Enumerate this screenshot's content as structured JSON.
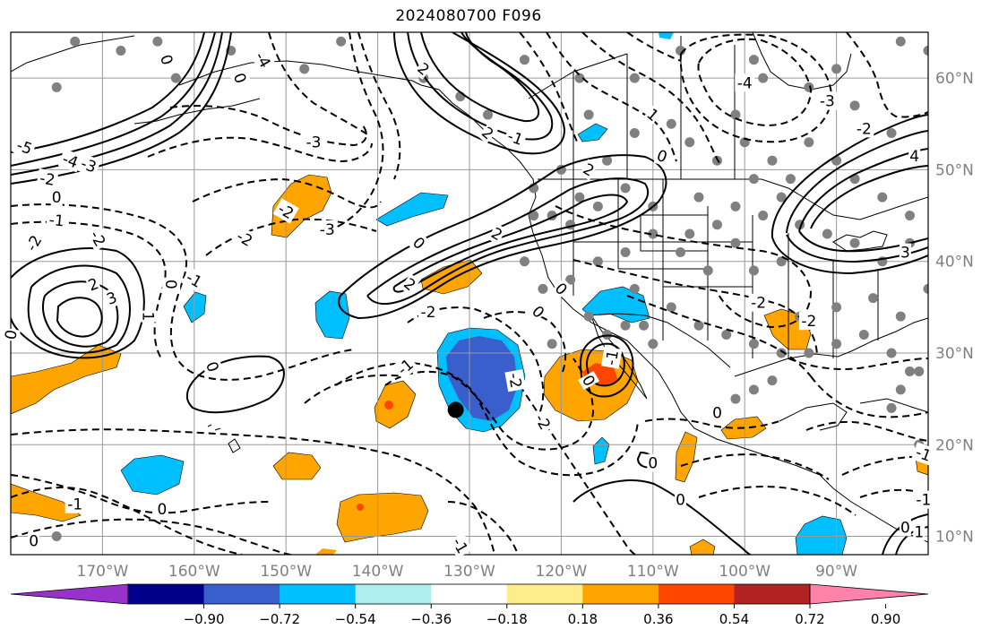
{
  "title": "2024080700 F096",
  "map": {
    "projection": "lat-lon",
    "extent": {
      "lon_min": -180,
      "lon_max": -80,
      "lat_min": 8,
      "lat_max": 65
    },
    "grid": true,
    "lon_ticks": [
      {
        "value": -170,
        "label": "170°W"
      },
      {
        "value": -160,
        "label": "160°W"
      },
      {
        "value": -150,
        "label": "150°W"
      },
      {
        "value": -140,
        "label": "140°W"
      },
      {
        "value": -130,
        "label": "130°W"
      },
      {
        "value": -120,
        "label": "120°W"
      },
      {
        "value": -110,
        "label": "110°W"
      },
      {
        "value": -100,
        "label": "100°W"
      },
      {
        "value": -90,
        "label": "90°W"
      }
    ],
    "lat_ticks": [
      {
        "value": 60,
        "label": "60°N"
      },
      {
        "value": 50,
        "label": "50°N"
      },
      {
        "value": 40,
        "label": "40°N"
      },
      {
        "value": 30,
        "label": "30°N"
      },
      {
        "value": 20,
        "label": "20°N"
      },
      {
        "value": 10,
        "label": "10°N"
      }
    ],
    "marker": {
      "lon": -131.5,
      "lat": 23.8,
      "color": "#000000"
    },
    "contour_labels": [
      {
        "text": "0",
        "lon": -180,
        "lat": 32,
        "rot": -80
      },
      {
        "text": "-5",
        "lon": -178.5,
        "lat": 52.5,
        "rot": 20
      },
      {
        "text": "-4",
        "lon": -173.5,
        "lat": 51,
        "rot": 20
      },
      {
        "text": "-3",
        "lon": -171.5,
        "lat": 50.5,
        "rot": 20
      },
      {
        "text": "-2",
        "lon": -176,
        "lat": 49,
        "rot": 10
      },
      {
        "text": "0",
        "lon": -175,
        "lat": 47,
        "rot": 0
      },
      {
        "text": "-1",
        "lon": -175,
        "lat": 44.5,
        "rot": 5
      },
      {
        "text": "-2",
        "lon": -177.5,
        "lat": 42,
        "rot": -60
      },
      {
        "text": "-2",
        "lon": -170.5,
        "lat": 42.5,
        "rot": 60
      },
      {
        "text": "2",
        "lon": -171,
        "lat": 37.5,
        "rot": -20
      },
      {
        "text": "3",
        "lon": -169,
        "lat": 36,
        "rot": -20
      },
      {
        "text": "1",
        "lon": -165,
        "lat": 34,
        "rot": 90
      },
      {
        "text": "0",
        "lon": -162.5,
        "lat": 37.5,
        "rot": 90
      },
      {
        "text": "0",
        "lon": -163,
        "lat": 62,
        "rot": 70
      },
      {
        "text": "0",
        "lon": -155,
        "lat": 60,
        "rot": 70
      },
      {
        "text": "-4",
        "lon": -152.5,
        "lat": 62,
        "rot": 60
      },
      {
        "text": "-3",
        "lon": -147,
        "lat": 53,
        "rot": 0
      },
      {
        "text": "-2",
        "lon": -150,
        "lat": 45.5,
        "rot": 30
      },
      {
        "text": "-2",
        "lon": -154.5,
        "lat": 42.5,
        "rot": 30
      },
      {
        "text": "-1",
        "lon": -160,
        "lat": 38,
        "rot": 30
      },
      {
        "text": "-3",
        "lon": -145.5,
        "lat": 43.5,
        "rot": 0
      },
      {
        "text": "2",
        "lon": -135,
        "lat": 61,
        "rot": 40
      },
      {
        "text": "2",
        "lon": -128,
        "lat": 54,
        "rot": 40
      },
      {
        "text": "-1",
        "lon": -125,
        "lat": 53.5,
        "rot": 20
      },
      {
        "text": "0",
        "lon": -135.5,
        "lat": 42,
        "rot": 45
      },
      {
        "text": "2",
        "lon": -127,
        "lat": 43,
        "rot": 30
      },
      {
        "text": "2",
        "lon": -136.5,
        "lat": 37.5,
        "rot": 40
      },
      {
        "text": "2",
        "lon": -117,
        "lat": 50,
        "rot": 30
      },
      {
        "text": "0",
        "lon": -109,
        "lat": 51.5,
        "rot": 20
      },
      {
        "text": "1",
        "lon": -110,
        "lat": 56,
        "rot": 40
      },
      {
        "text": "-4",
        "lon": -100,
        "lat": 59.5,
        "rot": 0
      },
      {
        "text": "-3",
        "lon": -91,
        "lat": 57.5,
        "rot": 0
      },
      {
        "text": "-2",
        "lon": -87,
        "lat": 54.5,
        "rot": 0
      },
      {
        "text": "-2",
        "lon": -98.5,
        "lat": 35.5,
        "rot": 0
      },
      {
        "text": "-2",
        "lon": -93,
        "lat": 33.5,
        "rot": 0
      },
      {
        "text": "4",
        "lon": -81.5,
        "lat": 51.5,
        "rot": 0
      },
      {
        "text": "3",
        "lon": -82.5,
        "lat": 41,
        "rot": 0
      },
      {
        "text": "0",
        "lon": -120,
        "lat": 37,
        "rot": 45
      },
      {
        "text": "0",
        "lon": -122.5,
        "lat": 34.5,
        "rot": 45
      },
      {
        "text": "-1",
        "lon": -114.5,
        "lat": 29.5,
        "rot": -80
      },
      {
        "text": "0",
        "lon": -117,
        "lat": 27,
        "rot": 60
      },
      {
        "text": "-2",
        "lon": -134.5,
        "lat": 34.5,
        "rot": 0
      },
      {
        "text": "-2",
        "lon": -125,
        "lat": 27,
        "rot": 80
      },
      {
        "text": "-2",
        "lon": -122,
        "lat": 22.5,
        "rot": 60
      },
      {
        "text": "-1",
        "lon": -137,
        "lat": 28.5,
        "rot": -40
      },
      {
        "text": "0",
        "lon": -158,
        "lat": 28.5,
        "rot": 70
      },
      {
        "text": "0",
        "lon": -110,
        "lat": 18,
        "rot": 0
      },
      {
        "text": "0",
        "lon": -103,
        "lat": 23.5,
        "rot": 0
      },
      {
        "text": "0",
        "lon": -107,
        "lat": 14,
        "rot": 0
      },
      {
        "text": "-1",
        "lon": -173,
        "lat": 13.5,
        "rot": 0
      },
      {
        "text": "0",
        "lon": -177.5,
        "lat": 9.5,
        "rot": 0
      },
      {
        "text": "0",
        "lon": -163.5,
        "lat": 13,
        "rot": 0
      },
      {
        "text": "0",
        "lon": -82.5,
        "lat": 11,
        "rot": 0
      },
      {
        "text": "1",
        "lon": -81,
        "lat": 10.5,
        "rot": 0
      },
      {
        "text": "-1",
        "lon": -80.5,
        "lat": 19,
        "rot": 20
      },
      {
        "text": "-1",
        "lon": -80.5,
        "lat": 14,
        "rot": 0
      },
      {
        "text": "-1",
        "lon": -131,
        "lat": 9,
        "rot": 60
      }
    ]
  },
  "colorbar": {
    "colors": [
      "#9932cc",
      "#00008b",
      "#3a5fcd",
      "#00bfff",
      "#afeeee",
      "#ffffff",
      "#ffec8b",
      "#ffa500",
      "#ff4500",
      "#b22222",
      "#ff82ab"
    ],
    "ticks": [
      "−0.90",
      "−0.72",
      "−0.54",
      "−0.36",
      "−0.18",
      "0.18",
      "0.36",
      "0.54",
      "0.72",
      "0.90"
    ]
  }
}
